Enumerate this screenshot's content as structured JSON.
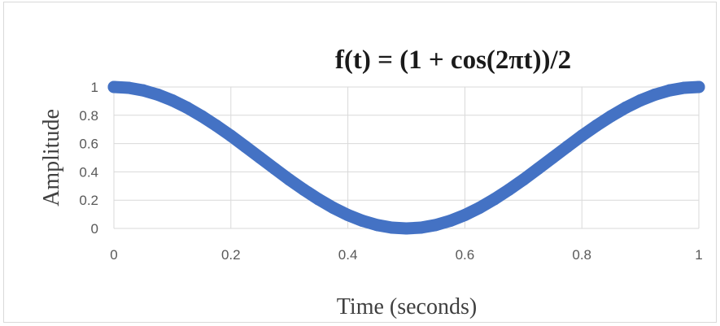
{
  "chart_data": {
    "type": "scatter",
    "title": "f(t) = (1 + cos(2πt))/2",
    "xlabel": "Time (seconds)",
    "ylabel": "Amplitude",
    "xlim": [
      0,
      1
    ],
    "ylim": [
      0,
      1
    ],
    "x_ticks": [
      "0",
      "0.2",
      "0.4",
      "0.6",
      "0.8",
      "1"
    ],
    "y_ticks": [
      "0",
      "0.2",
      "0.4",
      "0.6",
      "0.8",
      "1"
    ],
    "grid": true,
    "legend": "none",
    "series_color": "#4472c4",
    "series": [
      {
        "x": [
          0,
          0.025,
          0.05,
          0.075,
          0.1,
          0.125,
          0.15,
          0.175,
          0.2,
          0.225,
          0.25,
          0.275,
          0.3,
          0.325,
          0.35,
          0.375,
          0.4,
          0.425,
          0.45,
          0.475,
          0.5,
          0.525,
          0.55,
          0.575,
          0.6,
          0.625,
          0.65,
          0.675,
          0.7,
          0.725,
          0.75,
          0.775,
          0.8,
          0.825,
          0.85,
          0.875,
          0.9,
          0.925,
          0.95,
          0.975,
          1
        ],
        "y": [
          1,
          0.994,
          0.976,
          0.946,
          0.905,
          0.854,
          0.794,
          0.727,
          0.655,
          0.578,
          0.5,
          0.422,
          0.345,
          0.273,
          0.206,
          0.146,
          0.095,
          0.054,
          0.024,
          0.006,
          0,
          0.006,
          0.024,
          0.054,
          0.095,
          0.146,
          0.206,
          0.273,
          0.345,
          0.422,
          0.5,
          0.578,
          0.655,
          0.727,
          0.794,
          0.854,
          0.905,
          0.946,
          0.976,
          0.994,
          1
        ]
      }
    ]
  }
}
